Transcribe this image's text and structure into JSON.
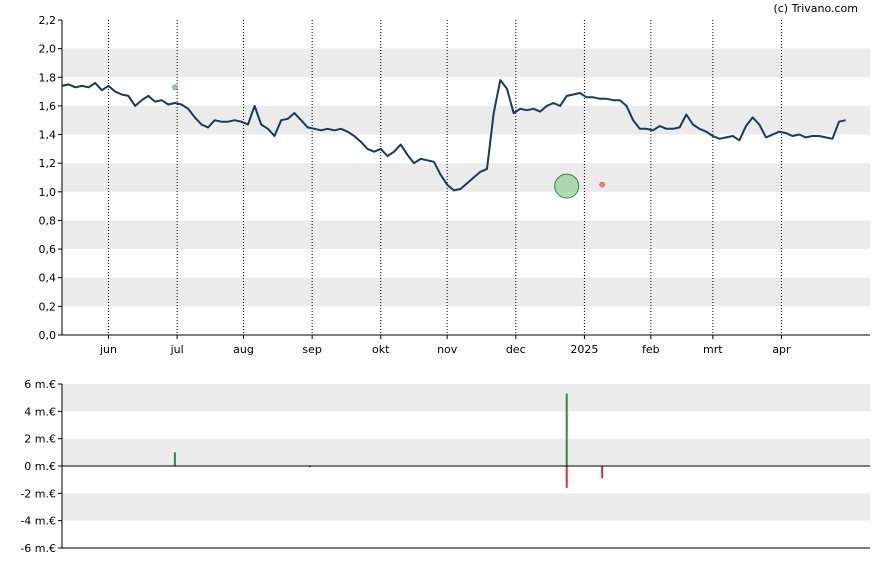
{
  "credit": "(c) Trivano.com",
  "colors": {
    "band": "#ebebeb",
    "price_line": "#1b3a57",
    "buy": "#2e8b3e",
    "sell": "#d9303f",
    "buy_fill": "#8fcf97",
    "sell_fill": "#ef7c85"
  },
  "chart_data": [
    {
      "type": "line",
      "ylim": [
        0,
        2.2
      ],
      "y_ticks": [
        "0,0",
        "0,2",
        "0,4",
        "0,6",
        "0,8",
        "1,0",
        "1,2",
        "1,4",
        "1,6",
        "1,8",
        "2,0",
        "2,2"
      ],
      "x_ticks": [
        "jun",
        "jul",
        "aug",
        "sep",
        "okt",
        "nov",
        "dec",
        "2025",
        "feb",
        "mrt",
        "apr"
      ],
      "grid": "alternating horizontal bands, dotted vertical lines at month starts",
      "series": [
        {
          "x_days": [
            0,
            3,
            6,
            9,
            12,
            15,
            18,
            21,
            24,
            27,
            30,
            33,
            36,
            39,
            42,
            45,
            48,
            51,
            54,
            57,
            60,
            63,
            66,
            69,
            72,
            75,
            78,
            81,
            84,
            87,
            90,
            93,
            96,
            99,
            102,
            105,
            108,
            111,
            114,
            117,
            120,
            123,
            126,
            129,
            132,
            135,
            138,
            141,
            144,
            147,
            150,
            153,
            156,
            159,
            162,
            165,
            168,
            171,
            174,
            177,
            180,
            183,
            186,
            189,
            192,
            195,
            198,
            201,
            204,
            207,
            210,
            213,
            216,
            219,
            222,
            225,
            228,
            231,
            234,
            237,
            240,
            243,
            246,
            249,
            252,
            255,
            258,
            261,
            264,
            267,
            270,
            273,
            276,
            279,
            282,
            285,
            288,
            291,
            294,
            297,
            300,
            303,
            306,
            309,
            312,
            315,
            318,
            321,
            324,
            327,
            330,
            333,
            336,
            339,
            342,
            345,
            348,
            351,
            354
          ],
          "values": [
            1.74,
            1.75,
            1.73,
            1.74,
            1.73,
            1.76,
            1.71,
            1.74,
            1.7,
            1.68,
            1.67,
            1.6,
            1.64,
            1.67,
            1.63,
            1.64,
            1.61,
            1.62,
            1.61,
            1.58,
            1.52,
            1.47,
            1.45,
            1.5,
            1.49,
            1.49,
            1.5,
            1.49,
            1.47,
            1.6,
            1.47,
            1.44,
            1.39,
            1.5,
            1.51,
            1.55,
            1.5,
            1.45,
            1.44,
            1.43,
            1.44,
            1.43,
            1.44,
            1.42,
            1.39,
            1.35,
            1.3,
            1.28,
            1.3,
            1.25,
            1.28,
            1.33,
            1.26,
            1.2,
            1.23,
            1.22,
            1.21,
            1.12,
            1.05,
            1.01,
            1.02,
            1.06,
            1.1,
            1.14,
            1.16,
            1.55,
            1.78,
            1.72,
            1.55,
            1.58,
            1.57,
            1.58,
            1.56,
            1.6,
            1.62,
            1.6,
            1.67,
            1.68,
            1.69,
            1.66,
            1.66,
            1.65,
            1.65,
            1.64,
            1.64,
            1.6,
            1.5,
            1.44,
            1.44,
            1.43,
            1.46,
            1.44,
            1.44,
            1.45,
            1.54,
            1.47,
            1.44,
            1.42,
            1.39,
            1.37,
            1.38,
            1.39,
            1.36,
            1.46,
            1.52,
            1.47,
            1.38,
            1.4,
            1.42,
            1.41,
            1.39,
            1.4,
            1.38,
            1.39,
            1.39,
            1.38,
            1.37,
            1.49,
            1.5
          ]
        }
      ],
      "markers": [
        {
          "day": 51,
          "value": 1.73,
          "kind": "buy",
          "size": "small"
        },
        {
          "day": 228,
          "value": 1.04,
          "kind": "buy",
          "size": "large"
        },
        {
          "day": 244,
          "value": 1.05,
          "kind": "sell",
          "size": "small"
        }
      ]
    },
    {
      "type": "bar",
      "unit": "m.€",
      "ylim": [
        -6,
        6
      ],
      "y_ticks": [
        "-6 m.€",
        "-4 m.€",
        "-2 m.€",
        "0 m.€",
        "2 m.€",
        "4 m.€",
        "6 m.€"
      ],
      "bars": [
        {
          "day": 51,
          "value": 1.0,
          "kind": "buy"
        },
        {
          "day": 112,
          "value": -0.08,
          "kind": "sell"
        },
        {
          "day": 228,
          "value": 5.3,
          "kind": "buy"
        },
        {
          "day": 228,
          "value": -1.6,
          "kind": "sell"
        },
        {
          "day": 244,
          "value": -0.9,
          "kind": "sell"
        }
      ]
    }
  ]
}
